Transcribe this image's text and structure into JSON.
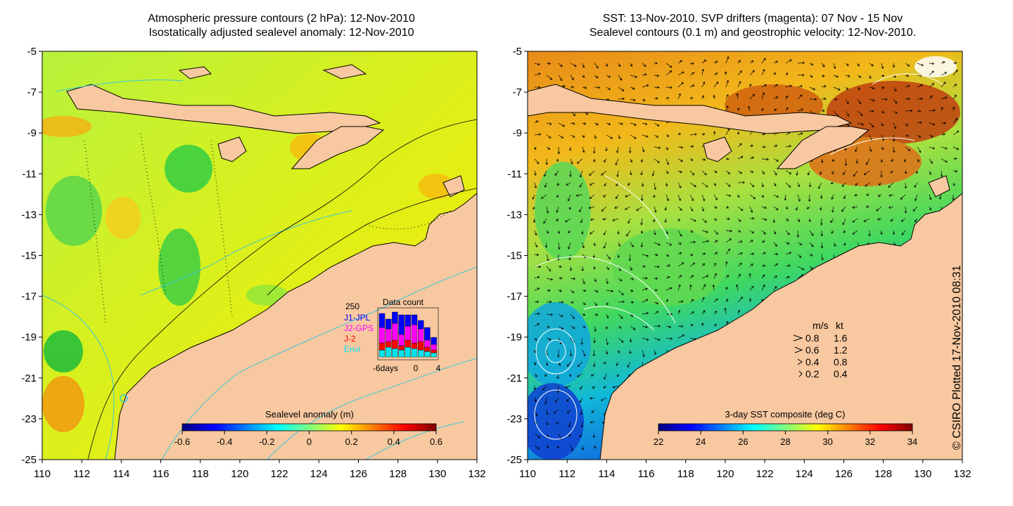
{
  "left_panel": {
    "title_line1": "Atmospheric pressure contours (2 hPa): 12-Nov-2010",
    "title_line2": "Isostatically adjusted sealevel anomaly: 12-Nov-2010",
    "colorbar": {
      "label": "Sealevel anomaly (m)",
      "ticks": [
        "-0.6",
        "-0.4",
        "-0.2",
        "0",
        "0.2",
        "0.4",
        "0.6"
      ],
      "colors": [
        "#00007f",
        "#0000ff",
        "#007fff",
        "#00ffff",
        "#7fff7f",
        "#ffff00",
        "#ff7f00",
        "#ff0000",
        "#7f0000"
      ]
    },
    "data_count": {
      "title": "Data count",
      "max_label": "250",
      "series": [
        {
          "name": "J1-JPL",
          "color": "#0000ff"
        },
        {
          "name": "J2-GPS",
          "color": "#ff00ff"
        },
        {
          "name": "J-2",
          "color": "#ff0000"
        },
        {
          "name": "Envi",
          "color": "#00e5ee"
        }
      ],
      "xlabel_left": "-6days",
      "xlabel_mid": "0",
      "xlabel_right": "4"
    }
  },
  "right_panel": {
    "title_line1": "SST: 13-Nov-2010. SVP drifters (magenta): 07 Nov - 15 Nov",
    "title_line2": "Sealevel contours (0.1 m) and geostrophic velocity: 12-Nov-2010.",
    "colorbar": {
      "label": "3-day SST composite (deg C)",
      "ticks": [
        "22",
        "24",
        "26",
        "28",
        "30",
        "32",
        "34"
      ],
      "colors": [
        "#00007f",
        "#0000ff",
        "#007fff",
        "#00ffff",
        "#7fff7f",
        "#ffff00",
        "#ff7f00",
        "#ff0000",
        "#7f0000"
      ]
    },
    "velocity_legend": {
      "header_ms": "m/s",
      "header_kt": "kt",
      "rows": [
        {
          "ms": "0.8",
          "kt": "1.6"
        },
        {
          "ms": "0.6",
          "kt": "1.2"
        },
        {
          "ms": "0.4",
          "kt": "0.8"
        },
        {
          "ms": "0.2",
          "kt": "0.4"
        }
      ]
    }
  },
  "axes": {
    "lat_ticks": [
      "-5",
      "-7",
      "-9",
      "-11",
      "-13",
      "-15",
      "-17",
      "-19",
      "-21",
      "-23",
      "-25"
    ],
    "lon_ticks": [
      "110",
      "112",
      "114",
      "116",
      "118",
      "120",
      "122",
      "124",
      "126",
      "128",
      "130",
      "132"
    ]
  },
  "credit": "© CSIRO Plotted 17-Nov-2010 08:31",
  "colors": {
    "land": "#f8c8a0",
    "coast": "#000000",
    "bathymetry": "#3cc8d8",
    "sst_contour": "#ffffff"
  }
}
